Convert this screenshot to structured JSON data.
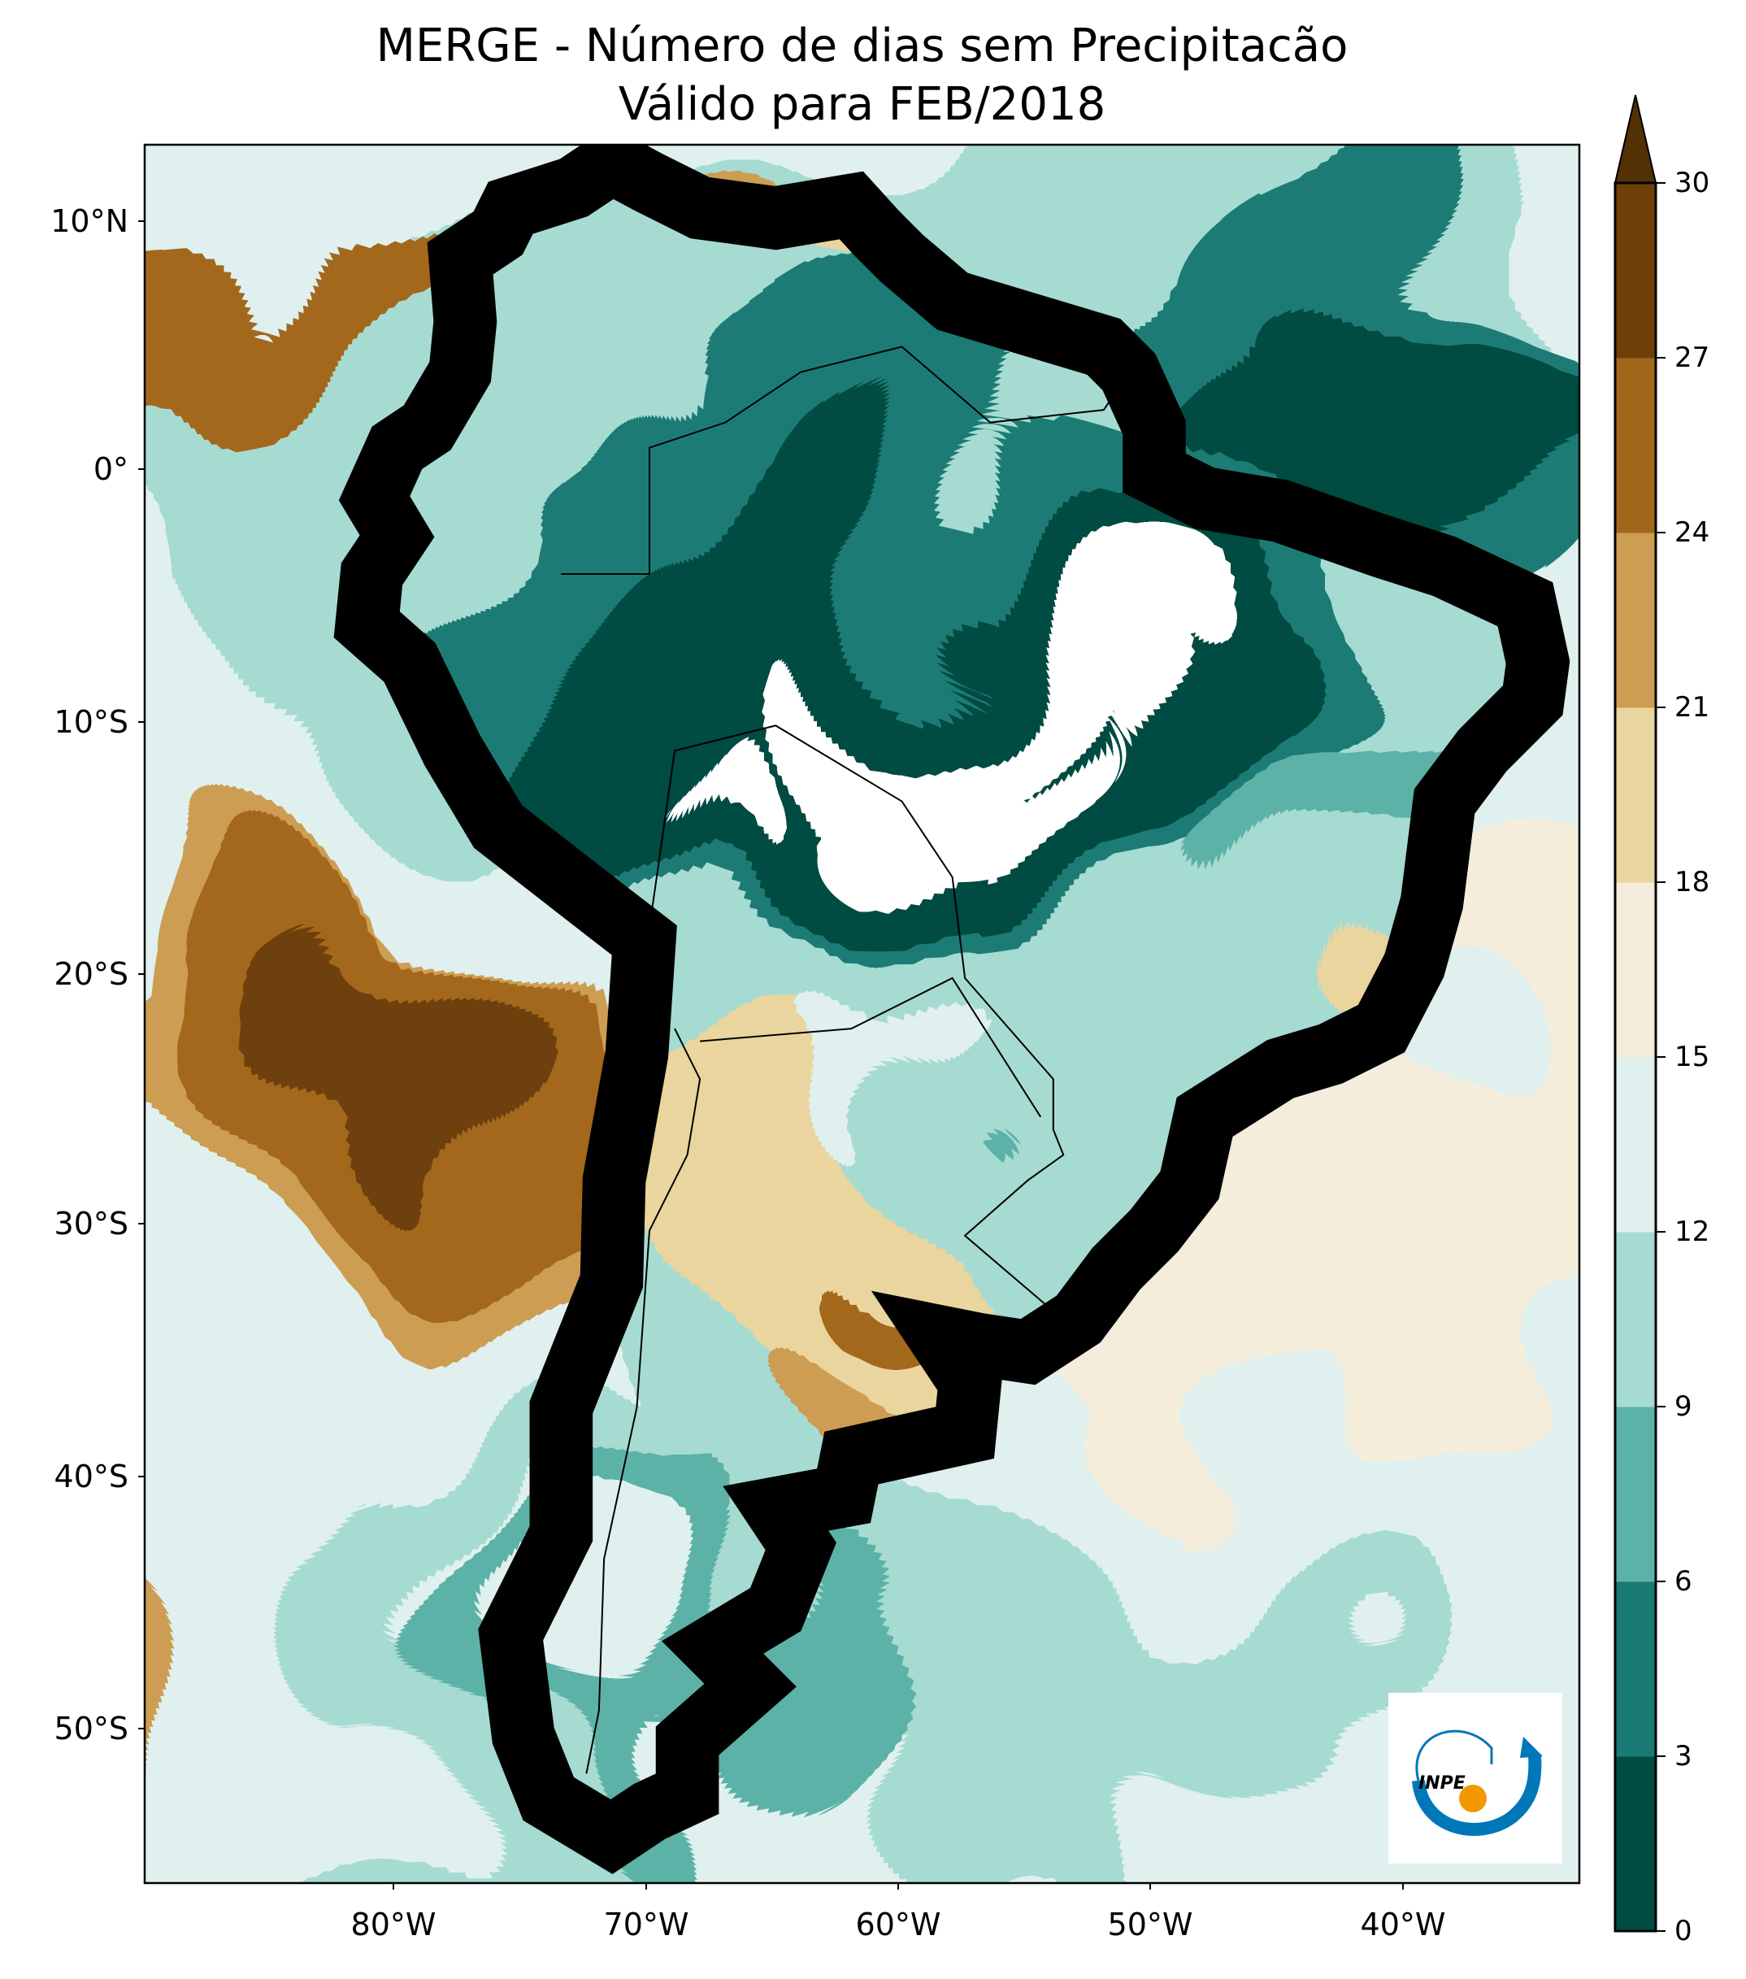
{
  "title": {
    "line1": "MERGE - Número de dias sem Precipitacão",
    "line2": "Válido para FEB/2018"
  },
  "axes": {
    "lat_labels": [
      "10°N",
      "0°",
      "10°S",
      "20°S",
      "30°S",
      "40°S",
      "50°S"
    ],
    "lon_labels": [
      "80°W",
      "70°W",
      "60°W",
      "50°W",
      "40°W"
    ],
    "lon_range": [
      -90,
      -33
    ],
    "lat_range": [
      -56,
      13
    ]
  },
  "colorbar": {
    "ticks": [
      "0",
      "3",
      "6",
      "9",
      "12",
      "15",
      "18",
      "21",
      "24",
      "27",
      "30"
    ],
    "colors": [
      "#004c42",
      "#1a7b74",
      "#5bb2a7",
      "#a6dbd2",
      "#dff0ee",
      "#f5eddc",
      "#ead59e",
      "#cd9d53",
      "#a3671c",
      "#6e3f07"
    ],
    "extend_color": "#543005",
    "extend": "max"
  },
  "logo": {
    "text": "INPE",
    "blue": "#0077b9",
    "orange": "#f39800"
  }
}
